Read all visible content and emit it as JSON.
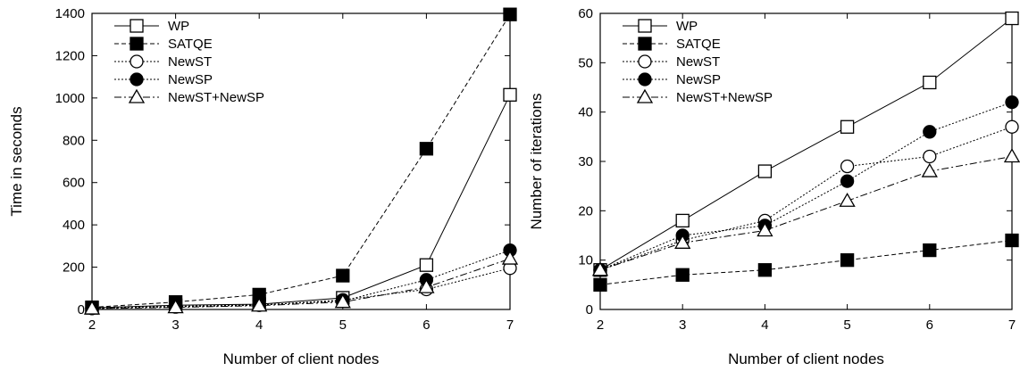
{
  "chart_data": [
    {
      "type": "line",
      "xlabel": "Number of client nodes",
      "ylabel": "Time in seconds",
      "xlim": [
        2,
        7
      ],
      "ylim": [
        0,
        1400
      ],
      "xticks": [
        "2",
        "3",
        "4",
        "5",
        "6",
        "7"
      ],
      "yticks": [
        "0",
        "200",
        "400",
        "600",
        "800",
        "1000",
        "1200",
        "1400"
      ],
      "legend_position": "top-left",
      "grid": false,
      "x": [
        2,
        3,
        4,
        5,
        6,
        7
      ],
      "series": [
        {
          "name": "WP",
          "values": [
            8,
            20,
            25,
            55,
            210,
            1015
          ],
          "marker": "open-square",
          "dash": "solid"
        },
        {
          "name": "SATQE",
          "values": [
            10,
            35,
            70,
            160,
            760,
            1395
          ],
          "marker": "filled-square",
          "dash": "dashed"
        },
        {
          "name": "NewST",
          "values": [
            5,
            12,
            20,
            45,
            95,
            195
          ],
          "marker": "open-circle",
          "dash": "dotted"
        },
        {
          "name": "NewSP",
          "values": [
            6,
            15,
            22,
            40,
            140,
            280
          ],
          "marker": "filled-circle",
          "dash": "dotted"
        },
        {
          "name": "NewST+NewSP",
          "values": [
            4,
            10,
            18,
            35,
            105,
            240
          ],
          "marker": "open-triangle",
          "dash": "dashdot"
        }
      ]
    },
    {
      "type": "line",
      "xlabel": "Number of client nodes",
      "ylabel": "Number of iterations",
      "xlim": [
        2,
        7
      ],
      "ylim": [
        0,
        60
      ],
      "xticks": [
        "2",
        "3",
        "4",
        "5",
        "6",
        "7"
      ],
      "yticks": [
        "0",
        "10",
        "20",
        "30",
        "40",
        "50",
        "60"
      ],
      "legend_position": "top-left",
      "grid": false,
      "x": [
        2,
        3,
        4,
        5,
        6,
        7
      ],
      "series": [
        {
          "name": "WP",
          "values": [
            8,
            18,
            28,
            37,
            46,
            59
          ],
          "marker": "open-square",
          "dash": "solid"
        },
        {
          "name": "SATQE",
          "values": [
            5,
            7,
            8,
            10,
            12,
            14
          ],
          "marker": "filled-square",
          "dash": "dashed"
        },
        {
          "name": "NewST",
          "values": [
            8,
            14,
            18,
            29,
            31,
            37
          ],
          "marker": "open-circle",
          "dash": "dotted"
        },
        {
          "name": "NewSP",
          "values": [
            8,
            15,
            17,
            26,
            36,
            42
          ],
          "marker": "filled-circle",
          "dash": "dotted"
        },
        {
          "name": "NewST+NewSP",
          "values": [
            8,
            13.5,
            16,
            22,
            28,
            31
          ],
          "marker": "open-triangle",
          "dash": "dashdot"
        }
      ]
    }
  ]
}
